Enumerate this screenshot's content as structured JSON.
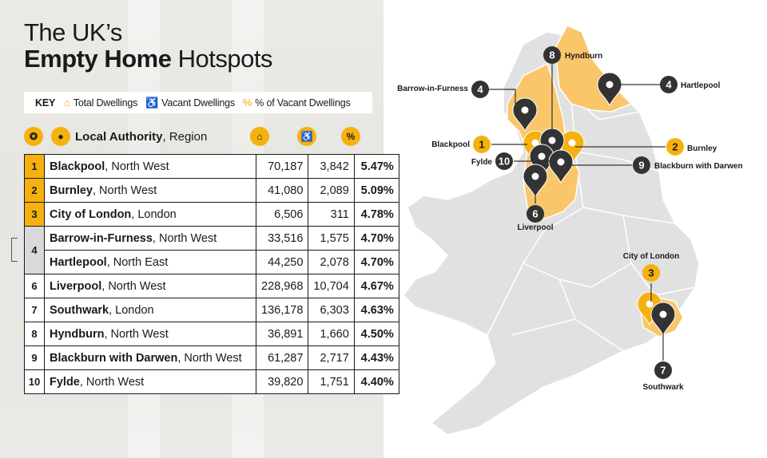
{
  "title": {
    "line1": "The UK’s",
    "line2_bold": "Empty Home",
    "line2_rest": " Hotspots"
  },
  "key": {
    "label": "KEY",
    "items": [
      {
        "icon": "house-icon",
        "text": "Total Dwellings"
      },
      {
        "icon": "person-icon",
        "text": "Vacant Dwellings"
      },
      {
        "icon": "percent-icon",
        "text": "% of Vacant Dwellings"
      }
    ]
  },
  "header": {
    "col_bold": "Local Authority",
    "col_rest": ", Region"
  },
  "rows": [
    {
      "rank": "1",
      "name": "Blackpool",
      "region": ", North West",
      "total": "70,187",
      "vacant": "3,842",
      "pct": "5.47%"
    },
    {
      "rank": "2",
      "name": "Burnley",
      "region": ", North West",
      "total": "41,080",
      "vacant": "2,089",
      "pct": "5.09%"
    },
    {
      "rank": "3",
      "name": "City of London",
      "region": ", London",
      "total": "6,506",
      "vacant": "311",
      "pct": "4.78%"
    },
    {
      "rank": "4",
      "name": "Barrow-in-Furness",
      "region": ", North West",
      "total": "33,516",
      "vacant": "1,575",
      "pct": "4.70%"
    },
    {
      "rank": "",
      "name": "Hartlepool",
      "region": ", North East",
      "total": "44,250",
      "vacant": "2,078",
      "pct": "4.70%"
    },
    {
      "rank": "6",
      "name": "Liverpool",
      "region": ", North West",
      "total": "228,968",
      "vacant": "10,704",
      "pct": "4.67%"
    },
    {
      "rank": "7",
      "name": "Southwark",
      "region": ", London",
      "total": "136,178",
      "vacant": "6,303",
      "pct": "4.63%"
    },
    {
      "rank": "8",
      "name": "Hyndburn",
      "region": ", North West",
      "total": "36,891",
      "vacant": "1,660",
      "pct": "4.50%"
    },
    {
      "rank": "9",
      "name": "Blackburn with Darwen",
      "region": ", North West",
      "total": "61,287",
      "vacant": "2,717",
      "pct": "4.43%"
    },
    {
      "rank": "10",
      "name": "Fylde",
      "region": ", North West",
      "total": "39,820",
      "vacant": "1,751",
      "pct": "4.40%"
    }
  ],
  "map": {
    "labels": {
      "hyndburn": {
        "num": "8",
        "name": "Hyndburn"
      },
      "barrow": {
        "num": "4",
        "name": "Barrow-in-Furness"
      },
      "hartlepool": {
        "num": "4",
        "name": "Hartlepool"
      },
      "blackpool": {
        "num": "1",
        "name": "Blackpool"
      },
      "burnley": {
        "num": "2",
        "name": "Burnley"
      },
      "fylde": {
        "num": "10",
        "name": "Fylde"
      },
      "blackburn": {
        "num": "9",
        "name": "Blackburn with Darwen"
      },
      "liverpool": {
        "num": "6",
        "name": "Liverpool"
      },
      "city": {
        "num": "3",
        "name": "City of London"
      },
      "southwark": {
        "num": "7",
        "name": "Southwark"
      }
    }
  },
  "colors": {
    "accent": "#f5b10d",
    "highlight_region": "#f9c66a",
    "land": "#e1e1e1",
    "dark": "#333333"
  }
}
